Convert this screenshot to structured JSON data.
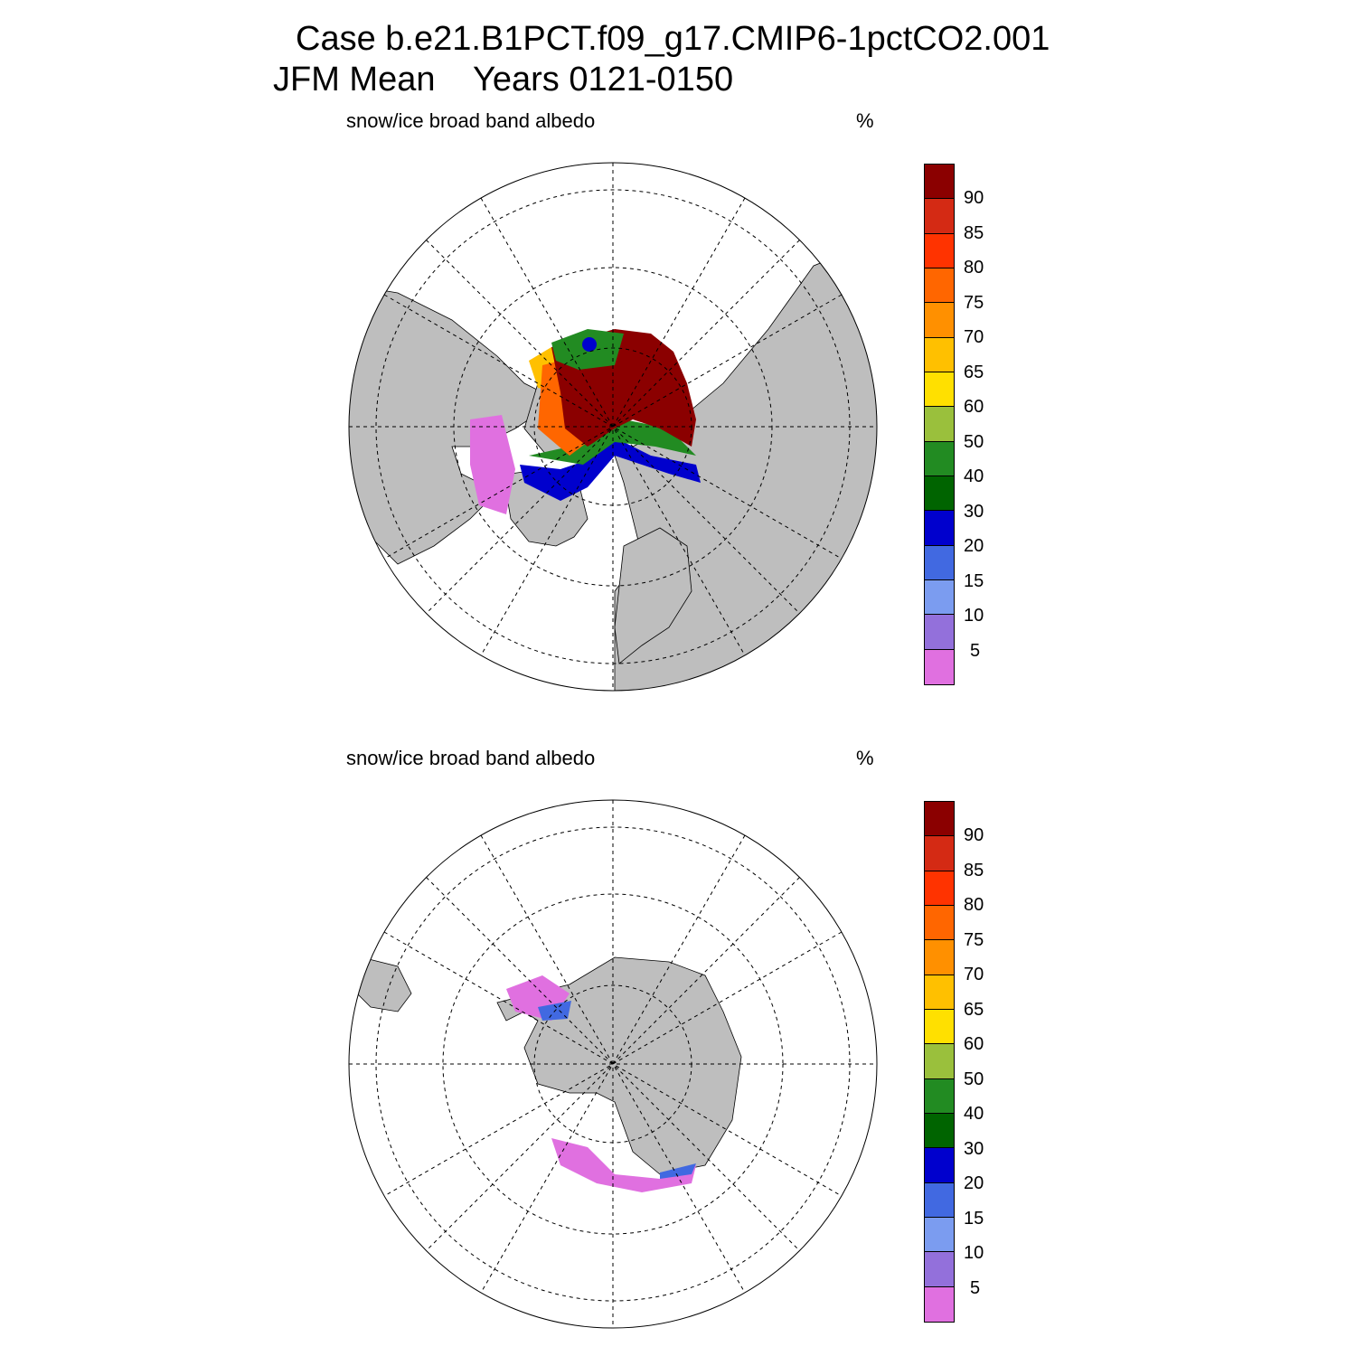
{
  "header": {
    "line1": "Case b.e21.B1PCT.f09_g17.CMIP6-1pctCO2.001",
    "line2": "JFM Mean    Years 0121-0150"
  },
  "panels": [
    {
      "id": "north",
      "variable_label": "snow/ice broad band albedo",
      "units": "%"
    },
    {
      "id": "south",
      "variable_label": "snow/ice broad band albedo",
      "units": "%"
    }
  ],
  "colorbar": {
    "colors": [
      "#8b0000",
      "#d42a14",
      "#ff3300",
      "#ff6600",
      "#ff9000",
      "#ffc000",
      "#ffe000",
      "#9ac03c",
      "#228b22",
      "#006400",
      "#0000cd",
      "#4169e1",
      "#7b9cf0",
      "#9370db",
      "#e070e0"
    ],
    "tick_labels": [
      "90",
      "85",
      "80",
      "75",
      "70",
      "65",
      "60",
      "50",
      "40",
      "30",
      "20",
      "15",
      "10",
      "5"
    ]
  },
  "map_colors": {
    "land": "#bebebe",
    "ocean": "#ffffff",
    "grid": "#000000"
  }
}
